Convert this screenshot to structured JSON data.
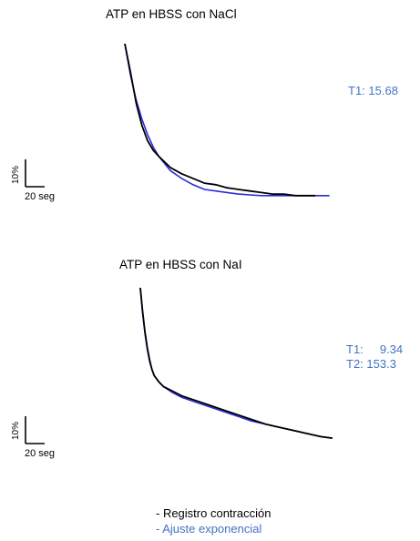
{
  "panels": [
    {
      "title": "ATP en HBSS con NaCl",
      "params": [
        "T1: 15.68"
      ],
      "scale_y": "10%",
      "scale_x": "20 seg"
    },
    {
      "title": "ATP en HBSS con NaI",
      "params": [
        "T1:     9.34",
        "T2: 153.3"
      ],
      "scale_y": "10%",
      "scale_x": "20 seg"
    }
  ],
  "legend": {
    "record": "- Registro contracción",
    "fit": "- Ajuste exponencial"
  },
  "colors": {
    "record": "#000000",
    "fit": "#2b2bdc",
    "param_text": "#4472c4"
  },
  "chart_data": [
    {
      "type": "line",
      "title": "ATP en HBSS con NaCl",
      "xlabel": "",
      "ylabel": "",
      "x_units": "seg",
      "y_units": "% (relative)",
      "scale_bar": {
        "x": 20,
        "y": 10
      },
      "series": [
        {
          "name": "Registro contracción",
          "x": [
            0,
            4,
            8,
            12,
            16,
            20,
            24,
            32,
            40,
            48,
            56,
            64,
            72,
            80,
            88,
            96,
            104,
            112,
            120,
            128,
            134
          ],
          "y": [
            100,
            82,
            62,
            48,
            38,
            32,
            28,
            21,
            17,
            14,
            11,
            10,
            8,
            7,
            6,
            5,
            4,
            4,
            3,
            3,
            3
          ]
        },
        {
          "name": "Ajuste exponencial",
          "x": [
            0,
            4,
            8,
            12,
            16,
            20,
            24,
            32,
            40,
            48,
            56,
            64,
            72,
            80,
            88,
            96,
            104,
            112,
            120,
            128,
            136,
            144
          ],
          "y": [
            100,
            80,
            64,
            52,
            42,
            34,
            28,
            19,
            14,
            10,
            7,
            6,
            5,
            4,
            3.5,
            3,
            3,
            3,
            3,
            3,
            3,
            3
          ]
        }
      ],
      "annotations": [
        "T1: 15.68"
      ]
    },
    {
      "type": "line",
      "title": "ATP en HBSS con NaI",
      "xlabel": "",
      "ylabel": "",
      "x_units": "seg",
      "y_units": "% (relative)",
      "scale_bar": {
        "x": 20,
        "y": 10
      },
      "series": [
        {
          "name": "Registro contracción",
          "x": [
            0,
            2,
            4,
            6,
            8,
            10,
            12,
            16,
            20,
            28,
            36,
            48,
            60,
            72,
            84,
            96,
            108,
            120,
            132,
            144,
            156,
            166
          ],
          "y": [
            100,
            85,
            72,
            62,
            54,
            48,
            44,
            40,
            37,
            34,
            31,
            28,
            25,
            22,
            19,
            16,
            13,
            11,
            9,
            7,
            5,
            4
          ]
        },
        {
          "name": "Ajuste exponencial",
          "x": [
            0,
            2,
            4,
            6,
            8,
            10,
            12,
            16,
            20,
            28,
            36,
            48,
            60,
            72,
            84,
            96,
            108,
            120,
            132,
            144,
            156,
            166
          ],
          "y": [
            100,
            84,
            71,
            61,
            53,
            48,
            44,
            40,
            37,
            33,
            30,
            27,
            24,
            21,
            18,
            15,
            13,
            11,
            9,
            7,
            5,
            4
          ]
        }
      ],
      "annotations": [
        "T1: 9.34",
        "T2: 153.3"
      ]
    }
  ]
}
